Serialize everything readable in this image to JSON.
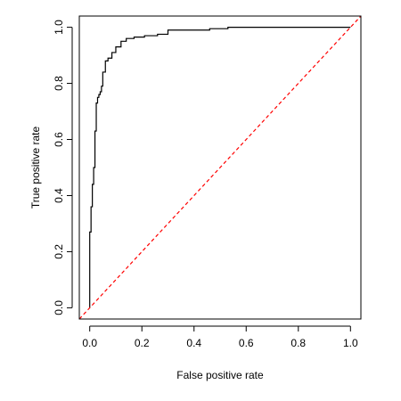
{
  "chart_data": {
    "type": "line",
    "title": "",
    "xlabel": "False positive rate",
    "ylabel": "True positive rate",
    "xlim": [
      -0.04,
      1.04
    ],
    "ylim": [
      -0.04,
      1.04
    ],
    "x_ticks": [
      0.0,
      0.2,
      0.4,
      0.6,
      0.8,
      1.0
    ],
    "y_ticks": [
      0.0,
      0.2,
      0.4,
      0.6,
      0.8,
      1.0
    ],
    "x_tick_labels": [
      "0.0",
      "0.2",
      "0.4",
      "0.6",
      "0.8",
      "1.0"
    ],
    "y_tick_labels": [
      "0.0",
      "0.2",
      "0.4",
      "0.6",
      "0.8",
      "1.0"
    ],
    "grid": false,
    "series": [
      {
        "line_style": "solid",
        "color": "#000000",
        "x": [
          0.0,
          0.0,
          0.005,
          0.005,
          0.01,
          0.01,
          0.015,
          0.015,
          0.02,
          0.02,
          0.025,
          0.025,
          0.03,
          0.03,
          0.035,
          0.035,
          0.04,
          0.04,
          0.045,
          0.045,
          0.05,
          0.05,
          0.06,
          0.06,
          0.07,
          0.07,
          0.085,
          0.085,
          0.1,
          0.1,
          0.12,
          0.12,
          0.14,
          0.14,
          0.17,
          0.17,
          0.21,
          0.21,
          0.26,
          0.26,
          0.3,
          0.3,
          0.46,
          0.46,
          0.53,
          0.53,
          0.99,
          1.0
        ],
        "y": [
          0.0,
          0.27,
          0.27,
          0.36,
          0.36,
          0.44,
          0.44,
          0.5,
          0.5,
          0.63,
          0.63,
          0.73,
          0.73,
          0.75,
          0.75,
          0.76,
          0.76,
          0.77,
          0.77,
          0.79,
          0.79,
          0.84,
          0.84,
          0.88,
          0.88,
          0.89,
          0.89,
          0.91,
          0.91,
          0.93,
          0.93,
          0.95,
          0.95,
          0.96,
          0.96,
          0.965,
          0.965,
          0.97,
          0.97,
          0.975,
          0.975,
          0.99,
          0.99,
          0.995,
          0.995,
          1.0,
          1.0,
          1.0
        ]
      },
      {
        "line_style": "dashed",
        "color": "#ff0000",
        "x": [
          -0.04,
          1.04
        ],
        "y": [
          -0.04,
          1.04
        ]
      }
    ]
  }
}
